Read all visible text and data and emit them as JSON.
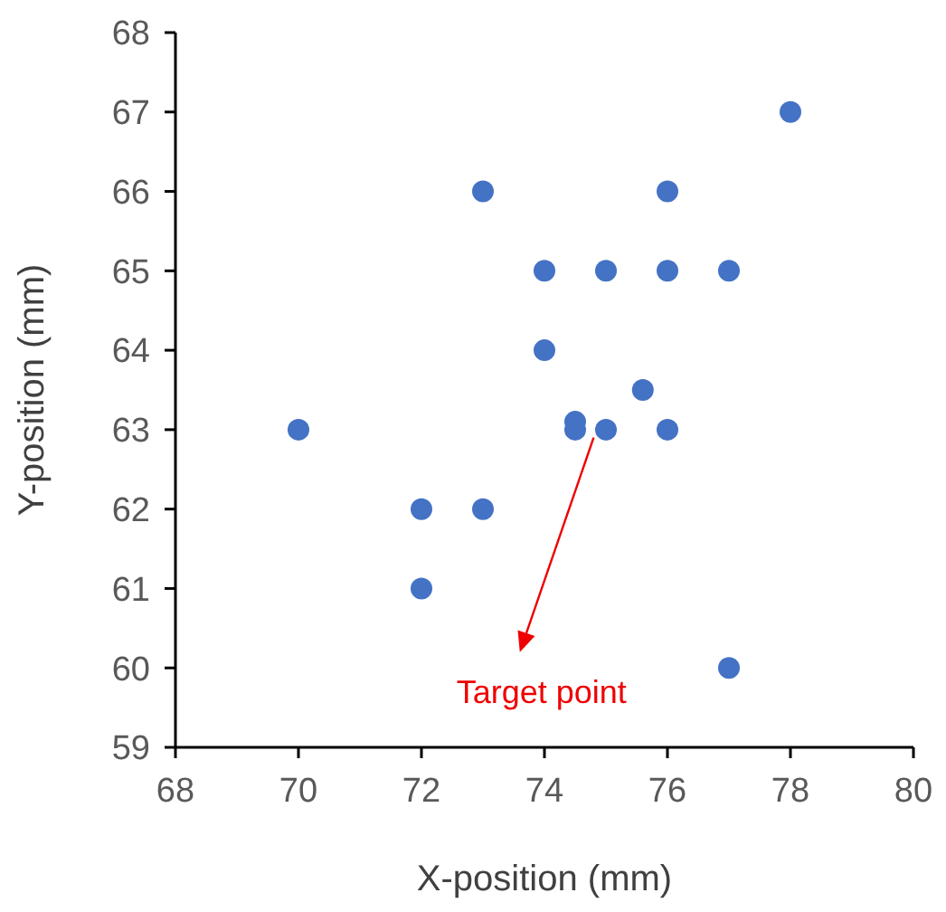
{
  "chart_data": {
    "type": "scatter",
    "xlabel": "X-position (mm)",
    "ylabel": "Y-position (mm)",
    "x": [
      78,
      73,
      76,
      74,
      75,
      76,
      77,
      74,
      75.6,
      70,
      74.5,
      74.5,
      75,
      76,
      72,
      73,
      72,
      77
    ],
    "values": [
      67,
      66,
      66,
      65,
      65,
      65,
      65,
      64,
      63.5,
      63,
      63.1,
      63,
      63,
      63,
      62,
      62,
      61,
      60
    ],
    "color": "#4472c4",
    "marker": "circle",
    "xlim": [
      68,
      80
    ],
    "xticks": [
      68,
      70,
      72,
      74,
      76,
      78,
      80
    ],
    "ylim": [
      59,
      68
    ],
    "yticks": [
      59,
      60,
      61,
      62,
      63,
      64,
      65,
      66,
      67,
      68
    ],
    "grid": false,
    "annotations": [
      {
        "text": "Target point",
        "x": 74.8,
        "y": 62.9
      }
    ]
  }
}
